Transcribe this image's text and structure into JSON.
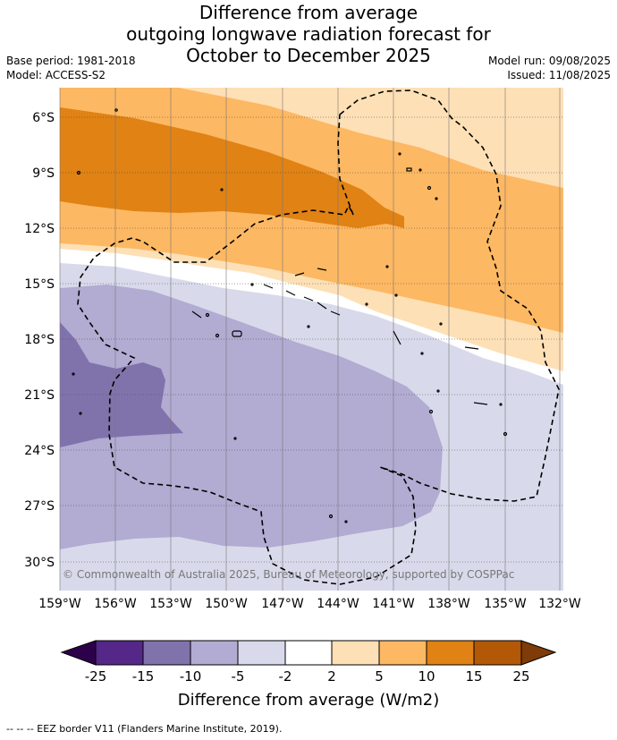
{
  "title": {
    "line1": "Difference from average",
    "line2": "outgoing longwave radiation forecast for",
    "line3": "October to December 2025"
  },
  "meta_left": {
    "base_period": "Base period: 1981-2018",
    "model": "Model: ACCESS-S2"
  },
  "meta_right": {
    "model_run": "Model run: 09/08/2025",
    "issued": "Issued: 11/08/2025"
  },
  "map": {
    "lat_labels": [
      "6°S",
      "9°S",
      "12°S",
      "15°S",
      "18°S",
      "21°S",
      "24°S",
      "27°S",
      "30°S"
    ],
    "lon_labels": [
      "159°W",
      "156°W",
      "153°W",
      "150°W",
      "147°W",
      "144°W",
      "141°W",
      "138°W",
      "135°W",
      "132°W"
    ],
    "copyright": "© Commonwealth of Australia 2025, Bureau of Meteorology, supported by COSPPac"
  },
  "colorbar": {
    "tick_labels": [
      "-25",
      "-15",
      "-10",
      "-5",
      "-2",
      "2",
      "5",
      "10",
      "15",
      "25"
    ],
    "title": "Difference from average (W/m2)",
    "colors": {
      "below": "#2d004b",
      "-25_-15": "#542788",
      "-15_-10": "#8073ac",
      "-10_-5": "#b2abd2",
      "-5_-2": "#d8daeb",
      "-2_2": "#ffffff",
      "2_5": "#fee0b6",
      "5_10": "#fdb863",
      "10_15": "#e08214",
      "15_25": "#b35806",
      "above": "#7f3b08"
    }
  },
  "footer": {
    "legend": "--  --  -- EEZ border V11 (Flanders Marine Institute, 2019)."
  }
}
